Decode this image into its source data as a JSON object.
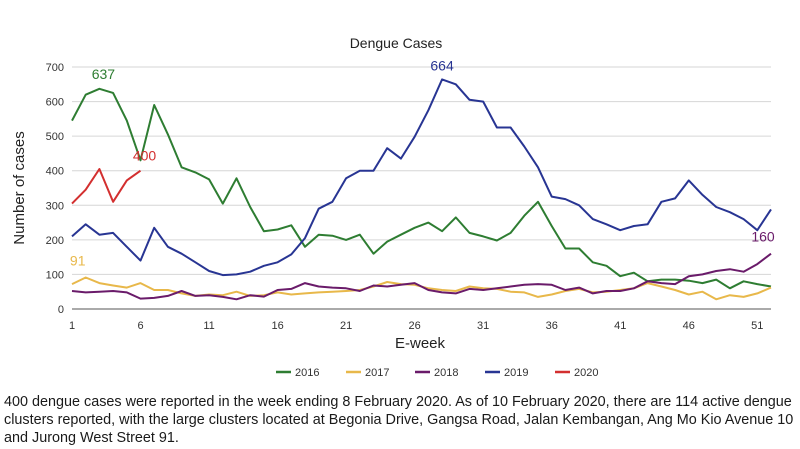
{
  "chart_data": {
    "type": "line",
    "title": "Dengue Cases",
    "xlabel": "E-week",
    "ylabel": "Number of cases",
    "xlim": [
      1,
      52
    ],
    "ylim": [
      0,
      700
    ],
    "x_ticks": [
      1,
      6,
      11,
      16,
      21,
      26,
      31,
      36,
      41,
      46,
      51
    ],
    "y_ticks": [
      0,
      100,
      200,
      300,
      400,
      500,
      600,
      700
    ],
    "grid": "horizontal",
    "legend_position": "bottom",
    "series": [
      {
        "name": "2016",
        "color": "#2e7d32",
        "x": [
          1,
          2,
          3,
          4,
          5,
          6,
          7,
          8,
          9,
          10,
          11,
          12,
          13,
          14,
          15,
          16,
          17,
          18,
          19,
          20,
          21,
          22,
          23,
          24,
          25,
          26,
          27,
          28,
          29,
          30,
          31,
          32,
          33,
          34,
          35,
          36,
          37,
          38,
          39,
          40,
          41,
          42,
          43,
          44,
          45,
          46,
          47,
          48,
          49,
          50,
          51,
          52
        ],
        "values": [
          545,
          620,
          637,
          625,
          545,
          430,
          590,
          505,
          410,
          395,
          375,
          305,
          378,
          295,
          225,
          230,
          242,
          180,
          215,
          212,
          200,
          215,
          160,
          195,
          215,
          235,
          250,
          225,
          265,
          220,
          210,
          198,
          220,
          270,
          310,
          240,
          175,
          175,
          135,
          125,
          95,
          105,
          80,
          85,
          85,
          82,
          75,
          85,
          60,
          80,
          72,
          65
        ]
      },
      {
        "name": "2017",
        "color": "#e8b84a",
        "x": [
          1,
          2,
          3,
          4,
          5,
          6,
          7,
          8,
          9,
          10,
          11,
          12,
          13,
          14,
          15,
          16,
          17,
          18,
          19,
          20,
          21,
          22,
          23,
          24,
          25,
          26,
          27,
          28,
          29,
          30,
          31,
          32,
          33,
          34,
          35,
          36,
          37,
          38,
          39,
          40,
          41,
          42,
          43,
          44,
          45,
          46,
          47,
          48,
          49,
          50,
          51,
          52
        ],
        "values": [
          72,
          91,
          75,
          68,
          62,
          75,
          55,
          55,
          45,
          38,
          42,
          40,
          50,
          38,
          40,
          48,
          42,
          45,
          48,
          50,
          52,
          55,
          65,
          78,
          72,
          70,
          60,
          55,
          52,
          65,
          60,
          58,
          50,
          48,
          35,
          42,
          52,
          58,
          48,
          50,
          55,
          60,
          75,
          65,
          55,
          42,
          50,
          28,
          40,
          35,
          45,
          62
        ]
      },
      {
        "name": "2018",
        "color": "#6a1b6a",
        "x": [
          1,
          2,
          3,
          4,
          5,
          6,
          7,
          8,
          9,
          10,
          11,
          12,
          13,
          14,
          15,
          16,
          17,
          18,
          19,
          20,
          21,
          22,
          23,
          24,
          25,
          26,
          27,
          28,
          29,
          30,
          31,
          32,
          33,
          34,
          35,
          36,
          37,
          38,
          39,
          40,
          41,
          42,
          43,
          44,
          45,
          46,
          47,
          48,
          49,
          50,
          51,
          52
        ],
        "values": [
          52,
          48,
          50,
          52,
          48,
          30,
          32,
          38,
          52,
          38,
          40,
          35,
          28,
          40,
          36,
          55,
          58,
          75,
          65,
          62,
          60,
          52,
          68,
          65,
          70,
          75,
          55,
          48,
          45,
          58,
          55,
          60,
          65,
          70,
          72,
          70,
          55,
          62,
          45,
          52,
          52,
          60,
          80,
          75,
          72,
          95,
          100,
          110,
          115,
          108,
          130,
          160
        ]
      },
      {
        "name": "2019",
        "color": "#283593",
        "x": [
          1,
          2,
          3,
          4,
          5,
          6,
          7,
          8,
          9,
          10,
          11,
          12,
          13,
          14,
          15,
          16,
          17,
          18,
          19,
          20,
          21,
          22,
          23,
          24,
          25,
          26,
          27,
          28,
          29,
          30,
          31,
          32,
          33,
          34,
          35,
          36,
          37,
          38,
          39,
          40,
          41,
          42,
          43,
          44,
          45,
          46,
          47,
          48,
          49,
          50,
          51,
          52
        ],
        "values": [
          210,
          245,
          215,
          220,
          180,
          140,
          235,
          180,
          160,
          135,
          110,
          98,
          100,
          108,
          125,
          135,
          158,
          205,
          290,
          310,
          378,
          400,
          400,
          465,
          435,
          498,
          575,
          664,
          650,
          605,
          600,
          525,
          525,
          470,
          410,
          325,
          318,
          300,
          260,
          245,
          228,
          240,
          245,
          310,
          320,
          372,
          330,
          295,
          280,
          260,
          228,
          288
        ]
      },
      {
        "name": "2020",
        "color": "#d32f2f",
        "x": [
          1,
          2,
          3,
          4,
          5,
          6
        ],
        "values": [
          305,
          345,
          405,
          310,
          372,
          400
        ]
      }
    ],
    "annotations": [
      {
        "text": "637",
        "series": "2016",
        "x": 3,
        "y": 637
      },
      {
        "text": "664",
        "series": "2019",
        "x": 28,
        "y": 664
      },
      {
        "text": "400",
        "series": "2020",
        "x": 6,
        "y": 400
      },
      {
        "text": "91",
        "series": "2017",
        "x": 2,
        "y": 91
      },
      {
        "text": "160",
        "series": "2018",
        "x": 52,
        "y": 160
      }
    ]
  },
  "caption": {
    "text": "400 dengue cases were reported in the week ending 8 February 2020. As of 10 February 2020, there are 114 active dengue clusters reported, with the large clusters located at Begonia Drive, Gangsa Road, Jalan Kembangan, Ang Mo Kio Avenue 10 and Jurong West Street 91."
  }
}
